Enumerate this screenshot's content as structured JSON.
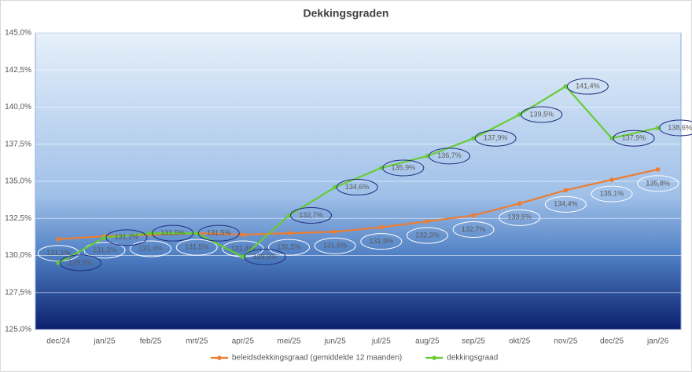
{
  "chart_data": {
    "type": "line",
    "title": "Dekkingsgraden",
    "categories": [
      "dec/24",
      "jan/25",
      "feb/25",
      "mrt/25",
      "apr/25",
      "mei/25",
      "jun/25",
      "jul/25",
      "aug/25",
      "sep/25",
      "okt/25",
      "nov/25",
      "dec/25",
      "jan/26"
    ],
    "series": [
      {
        "name": "beleidsdekkingsgraad (gemiddelde 12 maanden)",
        "color": "#ed7d31",
        "values": [
          131.1,
          131.3,
          131.4,
          131.5,
          131.4,
          131.5,
          131.6,
          131.9,
          132.3,
          132.7,
          133.5,
          134.4,
          135.1,
          135.8
        ],
        "value_labels": [
          "131,1%",
          "131,3%",
          "131,4%",
          "131,5%",
          "131,4%",
          "131,5%",
          "131,6%",
          "131,9%",
          "132,3%",
          "132,7%",
          "133,5%",
          "134,4%",
          "135,1%",
          "135,8%"
        ]
      },
      {
        "name": "dekkingsgraad",
        "color": "#66cc33",
        "values": [
          129.5,
          131.2,
          131.5,
          131.5,
          129.9,
          132.7,
          134.6,
          135.9,
          136.7,
          137.9,
          139.5,
          141.4,
          137.9,
          138.6
        ],
        "value_labels": [
          "129,5%",
          "131,2%",
          "131,5%",
          "131,5%",
          "129,9%",
          "132,7%",
          "134,6%",
          "135,9%",
          "136,7%",
          "137,9%",
          "139,5%",
          "141,4%",
          "137,9%",
          "138,6%"
        ]
      }
    ],
    "ylim": [
      125,
      145
    ],
    "yticks": [
      {
        "value": 125,
        "label": "125,0%"
      },
      {
        "value": 127.5,
        "label": "127,5%"
      },
      {
        "value": 130,
        "label": "130,0%"
      },
      {
        "value": 132.5,
        "label": "132,5%"
      },
      {
        "value": 135,
        "label": "135,0%"
      },
      {
        "value": 137.5,
        "label": "137,5%"
      },
      {
        "value": 140,
        "label": "140,0%"
      },
      {
        "value": 142.5,
        "label": "142,5%"
      },
      {
        "value": 145,
        "label": "145,0%"
      }
    ],
    "grid": true,
    "legend": "bottom"
  }
}
